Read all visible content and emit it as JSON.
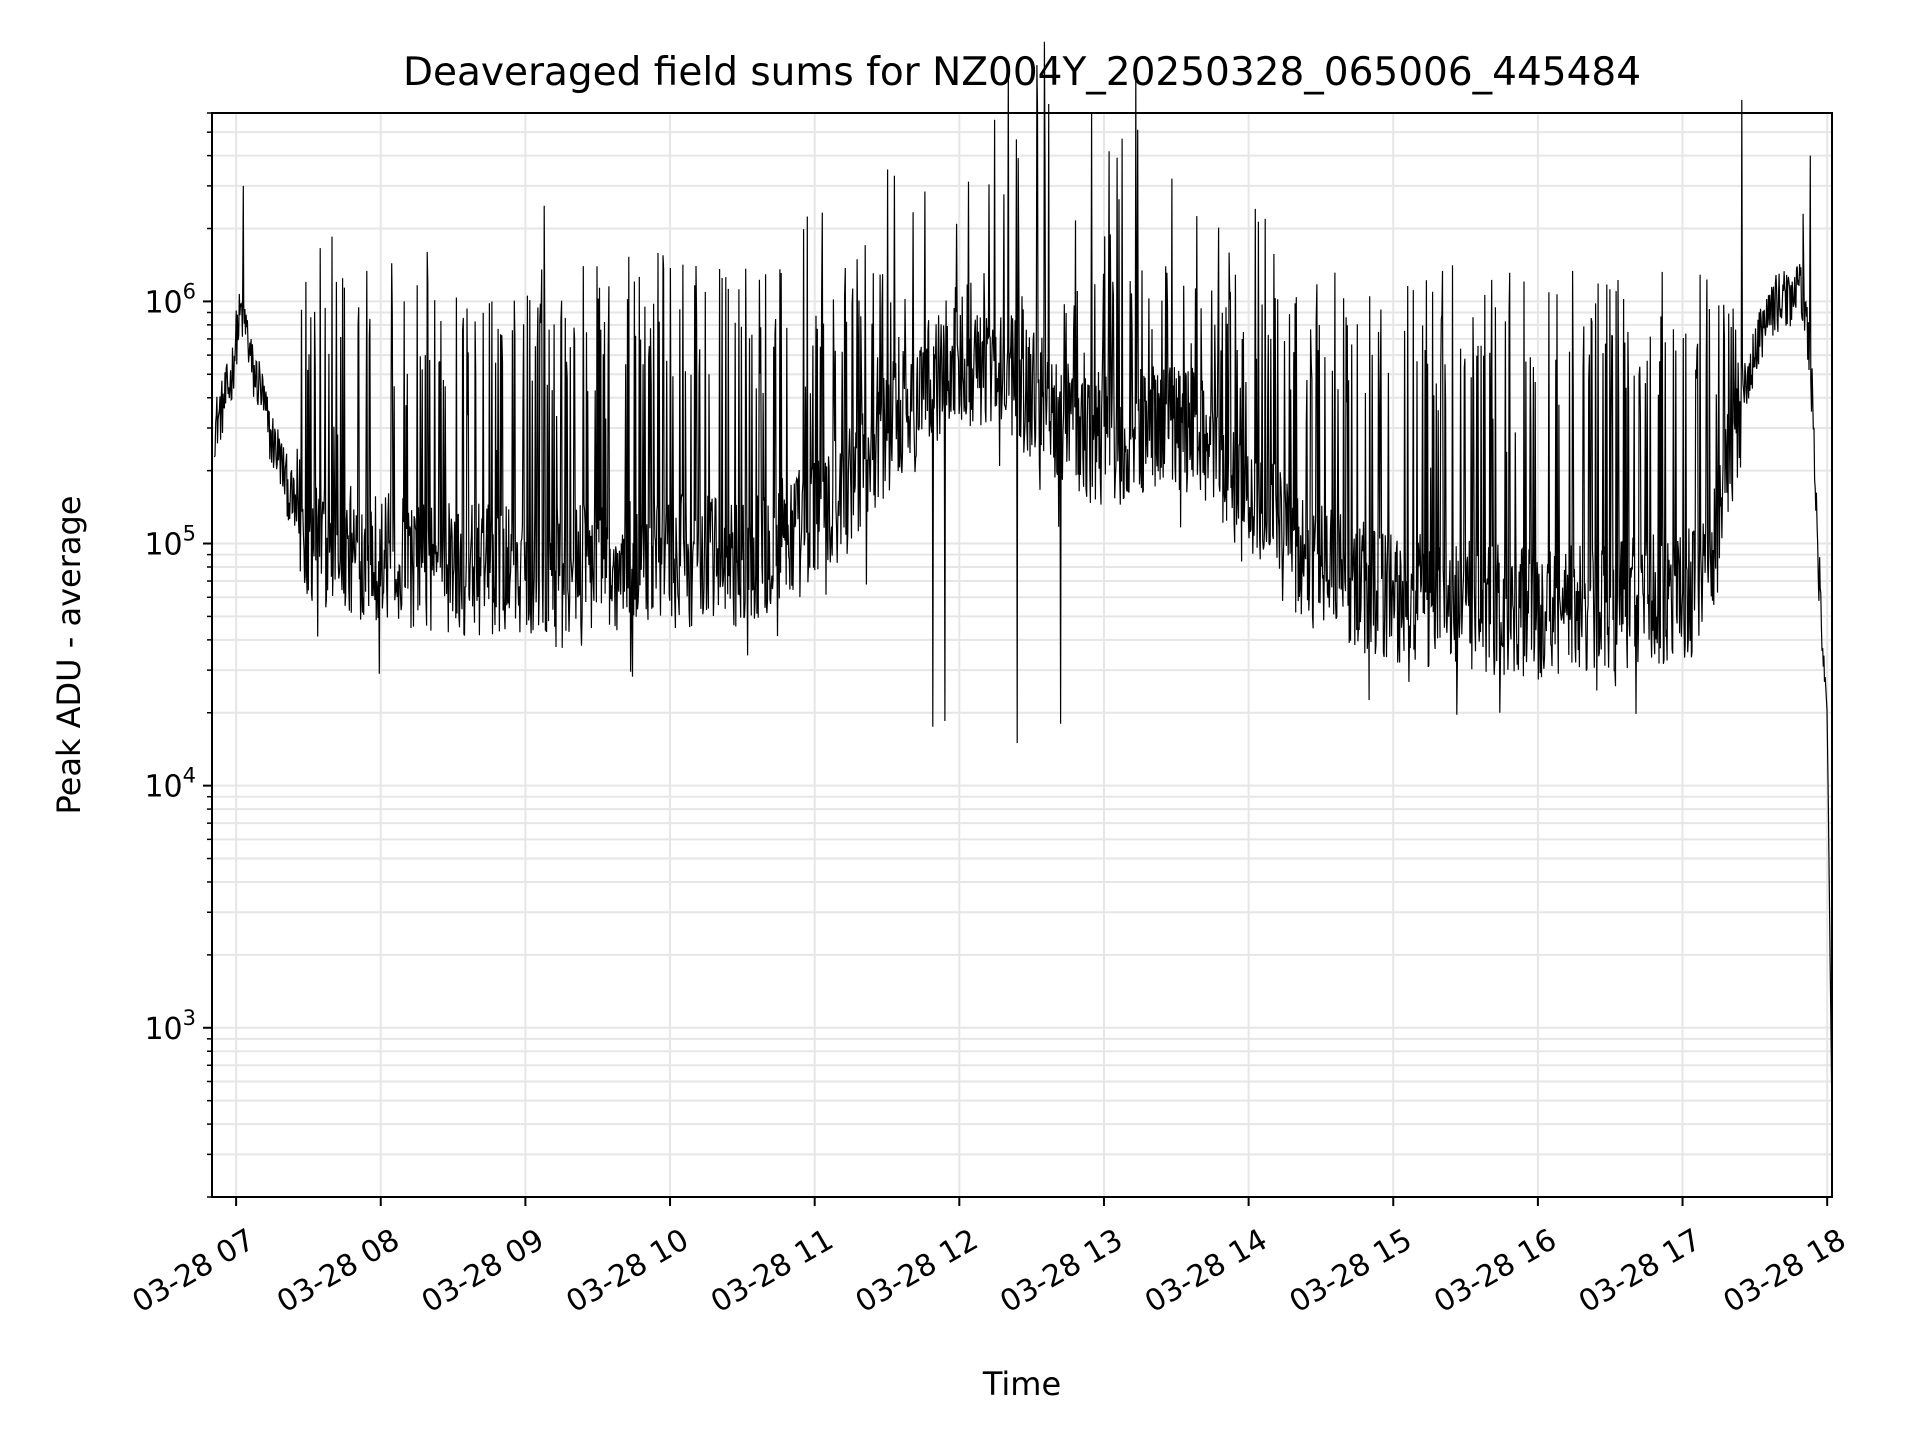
{
  "chart_data": {
    "type": "line",
    "title": "Deaveraged field sums for NZ004Y_20250328_065006_445484",
    "xlabel": "Time",
    "ylabel": "Peak ADU - average",
    "yscale": "log",
    "ylim": [
      200,
      6000000
    ],
    "xlim": [
      "2025-03-28 06:50",
      "2025-03-28 18:02"
    ],
    "grid": true,
    "line_color": "#000000",
    "grid_color": "#e6e6e6",
    "xtick_labels": [
      "03-28 07",
      "03-28 08",
      "03-28 09",
      "03-28 10",
      "03-28 11",
      "03-28 12",
      "03-28 13",
      "03-28 14",
      "03-28 15",
      "03-28 16",
      "03-28 17",
      "03-28 18"
    ],
    "ytick_major": [
      {
        "value": 1000,
        "base": "10",
        "exp": "3"
      },
      {
        "value": 10000,
        "base": "10",
        "exp": "4"
      },
      {
        "value": 100000,
        "base": "10",
        "exp": "5"
      },
      {
        "value": 1000000,
        "base": "10",
        "exp": "6"
      }
    ],
    "x": [
      "06:51",
      "06:55",
      "06:58",
      "07:00",
      "07:02",
      "07:04",
      "07:07",
      "07:10",
      "07:14",
      "07:18",
      "07:22",
      "07:26",
      "07:30",
      "07:40",
      "08:00",
      "08:20",
      "08:40",
      "09:00",
      "09:30",
      "10:00",
      "10:30",
      "11:00",
      "11:20",
      "11:40",
      "12:00",
      "12:20",
      "12:40",
      "13:00",
      "13:20",
      "13:40",
      "14:00",
      "14:10",
      "14:20",
      "14:40",
      "15:00",
      "15:30",
      "16:00",
      "16:30",
      "17:00",
      "17:10",
      "17:15",
      "17:20",
      "17:25",
      "17:30",
      "17:35",
      "17:40",
      "17:45",
      "17:50",
      "17:53",
      "17:55",
      "17:57",
      "17:58",
      "17:59",
      "18:00",
      "18:01",
      "18:02"
    ],
    "y": [
      300000,
      380000,
      480000,
      700000,
      900000,
      800000,
      500000,
      450000,
      280000,
      230000,
      160000,
      130000,
      100000,
      95000,
      88000,
      80000,
      78000,
      80000,
      80000,
      85000,
      85000,
      120000,
      200000,
      400000,
      600000,
      500000,
      350000,
      250000,
      300000,
      300000,
      150000,
      120000,
      90000,
      70000,
      60000,
      55000,
      50000,
      55000,
      60000,
      70000,
      120000,
      250000,
      400000,
      600000,
      900000,
      1000000,
      1050000,
      1100000,
      600000,
      200000,
      60000,
      38000,
      30000,
      20000,
      3000,
      400
    ],
    "spikes": [
      {
        "x": "07:03",
        "y": 3000000
      },
      {
        "x": "17:53",
        "y": 4000000
      },
      {
        "x": "17:50",
        "y": 2300000
      },
      {
        "x": "12:24",
        "y": 15000
      },
      {
        "x": "12:42",
        "y": 18000
      },
      {
        "x": "11:49",
        "y": 17500
      },
      {
        "x": "11:54",
        "y": 18500
      }
    ]
  }
}
